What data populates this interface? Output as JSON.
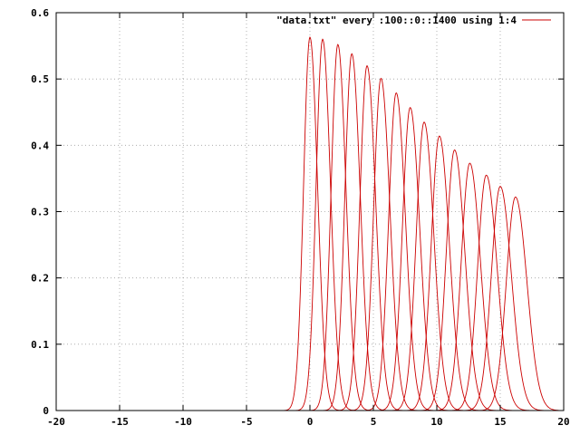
{
  "chart_data": {
    "type": "line",
    "legend_position": "top-right",
    "grid": true,
    "xlim": [
      -20,
      20
    ],
    "ylim": [
      0,
      0.6
    ],
    "x_ticks": [
      "-20",
      "-15",
      "-10",
      "-5",
      "0",
      "5",
      "10",
      "15",
      "20"
    ],
    "y_ticks": [
      "0",
      "0.1",
      "0.2",
      "0.3",
      "0.4",
      "0.5",
      "0.6"
    ],
    "series": [
      {
        "name": "\"data.txt\" every :100::0::1400 using 1:4",
        "color": "#cc0000",
        "peaks": [
          {
            "center": 0.0,
            "height": 0.563
          },
          {
            "center": 1.0,
            "height": 0.56
          },
          {
            "center": 2.2,
            "height": 0.552
          },
          {
            "center": 3.3,
            "height": 0.538
          },
          {
            "center": 4.5,
            "height": 0.52
          },
          {
            "center": 5.6,
            "height": 0.501
          },
          {
            "center": 6.8,
            "height": 0.479
          },
          {
            "center": 7.9,
            "height": 0.457
          },
          {
            "center": 9.0,
            "height": 0.435
          },
          {
            "center": 10.2,
            "height": 0.414
          },
          {
            "center": 11.4,
            "height": 0.393
          },
          {
            "center": 12.6,
            "height": 0.373
          },
          {
            "center": 13.9,
            "height": 0.355
          },
          {
            "center": 15.0,
            "height": 0.338
          },
          {
            "center": 16.2,
            "height": 0.322
          }
        ]
      }
    ]
  }
}
